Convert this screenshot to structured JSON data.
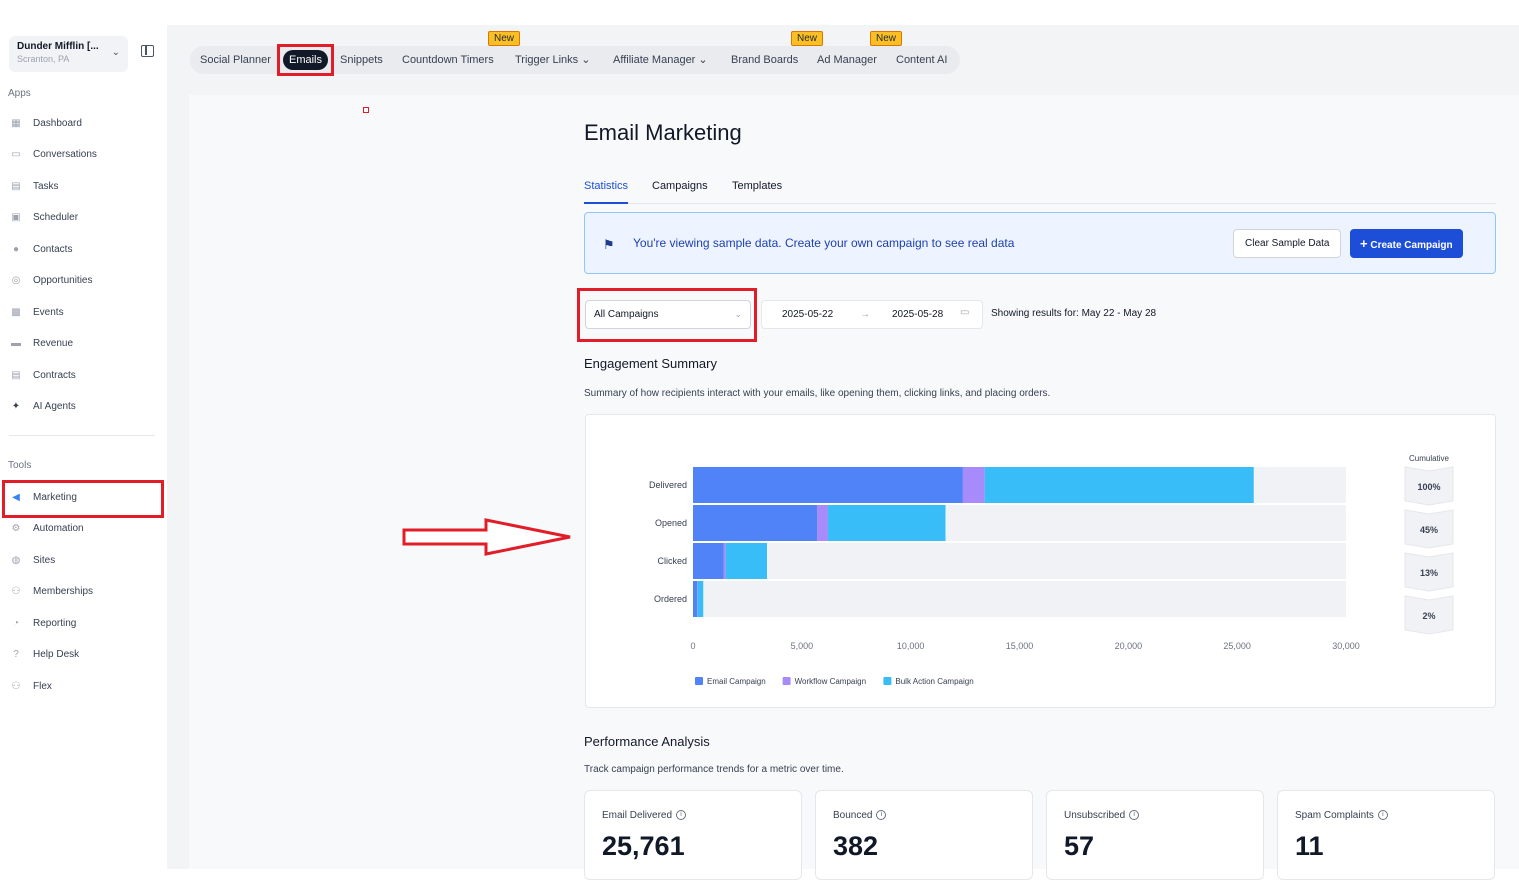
{
  "account": {
    "name": "Dunder Mifflin [...",
    "location": "Scranton, PA"
  },
  "sidebar": {
    "apps_label": "Apps",
    "tools_label": "Tools",
    "apps": [
      {
        "label": "Dashboard",
        "icon": "dashboard-icon"
      },
      {
        "label": "Conversations",
        "icon": "chat-icon"
      },
      {
        "label": "Tasks",
        "icon": "tasks-icon"
      },
      {
        "label": "Scheduler",
        "icon": "calendar-icon"
      },
      {
        "label": "Contacts",
        "icon": "contacts-icon"
      },
      {
        "label": "Opportunities",
        "icon": "opportunities-icon"
      },
      {
        "label": "Events",
        "icon": "events-icon"
      },
      {
        "label": "Revenue",
        "icon": "revenue-icon"
      },
      {
        "label": "Contracts",
        "icon": "contracts-icon"
      },
      {
        "label": "AI Agents",
        "icon": "sparkle-icon"
      }
    ],
    "tools": [
      {
        "label": "Marketing",
        "icon": "megaphone-icon"
      },
      {
        "label": "Automation",
        "icon": "automation-icon"
      },
      {
        "label": "Sites",
        "icon": "sites-icon"
      },
      {
        "label": "Memberships",
        "icon": "memberships-icon"
      },
      {
        "label": "Reporting",
        "icon": "reporting-icon"
      },
      {
        "label": "Help Desk",
        "icon": "help-icon"
      },
      {
        "label": "Flex",
        "icon": "flex-icon"
      }
    ]
  },
  "topnav": {
    "items": [
      "Social Planner",
      "Emails",
      "Snippets",
      "Countdown Timers",
      "Trigger Links",
      "Affiliate Manager",
      "Brand Boards",
      "Ad Manager",
      "Content AI"
    ],
    "new_badge": "New"
  },
  "page": {
    "title": "Email Marketing",
    "tabs": [
      "Statistics",
      "Campaigns",
      "Templates"
    ]
  },
  "banner": {
    "message": "You're viewing sample data. Create your own campaign to see real data",
    "clear_label": "Clear Sample Data",
    "create_label": "Create Campaign"
  },
  "filters": {
    "campaign_select": "All Campaigns",
    "start_date": "2025-05-22",
    "end_date": "2025-05-28",
    "showing": "Showing results for: May 22 - May 28"
  },
  "engagement": {
    "title": "Engagement Summary",
    "subtitle": "Summary of how recipients interact with your emails, like opening them, clicking links, and placing orders."
  },
  "chart_data": {
    "type": "bar",
    "orientation": "horizontal",
    "stacked": true,
    "categories": [
      "Delivered",
      "Opened",
      "Clicked",
      "Ordered"
    ],
    "series": [
      {
        "name": "Email Campaign",
        "color": "#4f83f7",
        "values": [
          12400,
          5700,
          1400,
          200
        ]
      },
      {
        "name": "Workflow Campaign",
        "color": "#a78bfa",
        "values": [
          1000,
          500,
          100,
          20
        ]
      },
      {
        "name": "Bulk Action Campaign",
        "color": "#38bdf8",
        "values": [
          12361,
          5400,
          1900,
          250
        ]
      }
    ],
    "xlim": [
      0,
      30000
    ],
    "xticks": [
      "0",
      "5,000",
      "10,000",
      "15,000",
      "20,000",
      "25,000",
      "30,000"
    ],
    "cumulative_label": "Cumulative",
    "cumulative": [
      "100%",
      "45%",
      "13%",
      "2%"
    ],
    "legend_position": "bottom-left"
  },
  "performance": {
    "title": "Performance Analysis",
    "subtitle": "Track campaign performance trends for a metric over time.",
    "cards": [
      {
        "label": "Email Delivered",
        "value": "25,761"
      },
      {
        "label": "Bounced",
        "value": "382"
      },
      {
        "label": "Unsubscribed",
        "value": "57"
      },
      {
        "label": "Spam Complaints",
        "value": "11"
      }
    ]
  }
}
